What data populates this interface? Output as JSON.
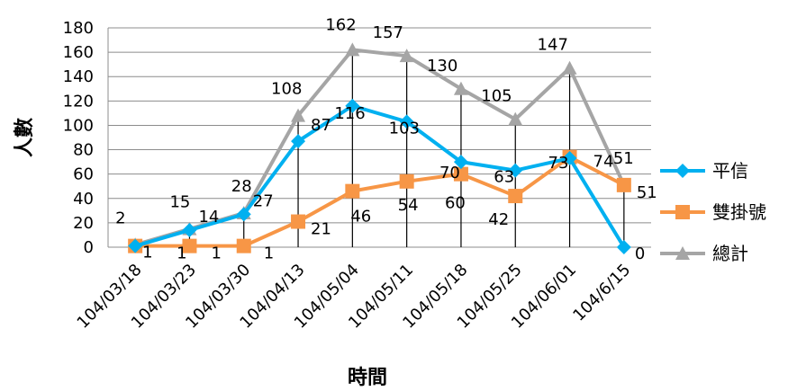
{
  "chart_data": {
    "type": "line",
    "title": "",
    "xlabel": "時間",
    "ylabel": "人數",
    "ylim": [
      0,
      180
    ],
    "y_ticks": [
      "0",
      "20",
      "40",
      "60",
      "80",
      "100",
      "120",
      "140",
      "160",
      "180"
    ],
    "grid": true,
    "drop_lines": true,
    "legend_position": "right",
    "categories": [
      "104/03/18",
      "104/03/23",
      "104/03/30",
      "104/04/13",
      "104/05/04",
      "104/05/11",
      "104/05/18",
      "104/05/25",
      "104/06/01",
      "104/6/15"
    ],
    "series": [
      {
        "name": "平信",
        "color": "#00B0F0",
        "marker": "diamond",
        "values": [
          1,
          14,
          27,
          87,
          116,
          103,
          70,
          63,
          73,
          0
        ],
        "labels": [
          "1",
          "14",
          "27",
          "87",
          "116",
          "103",
          "70",
          "63",
          "73",
          "0"
        ]
      },
      {
        "name": "雙掛號",
        "color": "#F79646",
        "marker": "square",
        "values": [
          1,
          1,
          1,
          21,
          46,
          54,
          60,
          42,
          74,
          51
        ],
        "labels": [
          "1",
          "1",
          "1",
          "21",
          "46",
          "54",
          "60",
          "42",
          "74",
          "51"
        ]
      },
      {
        "name": "總計",
        "color": "#A5A5A5",
        "marker": "triangle",
        "values": [
          2,
          15,
          28,
          108,
          162,
          157,
          130,
          105,
          147,
          51
        ],
        "labels": [
          "2",
          "15",
          "28",
          "108",
          "162",
          "157",
          "130",
          "105",
          "147",
          "51"
        ]
      }
    ]
  }
}
